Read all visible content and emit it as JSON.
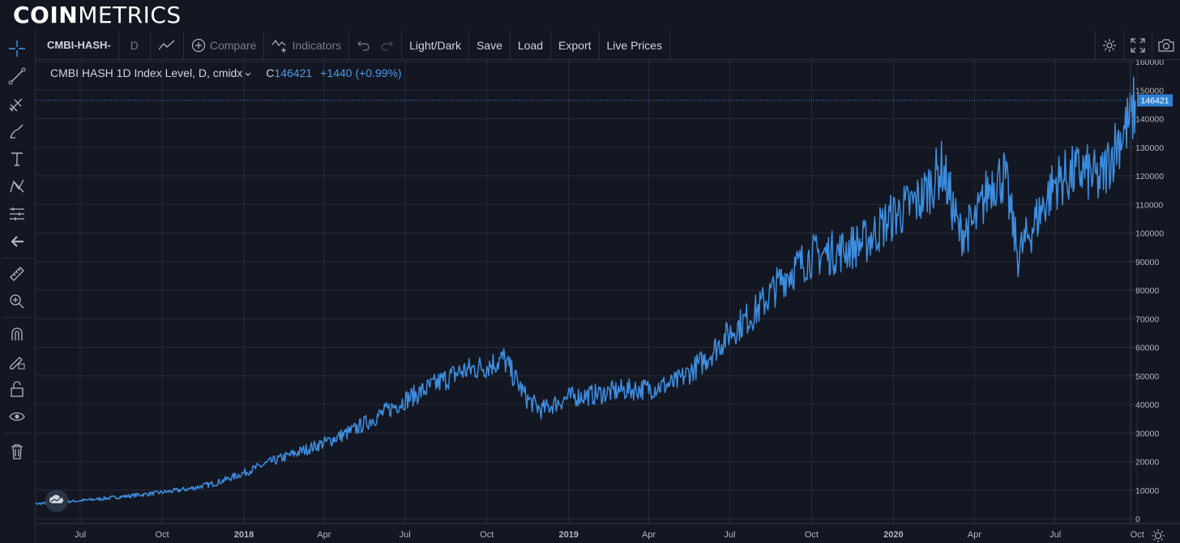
{
  "brand": {
    "bold": "COIN",
    "light": "METRICS"
  },
  "toolbar": {
    "symbol": "CMBI-HASH-",
    "interval": "D",
    "compare": "Compare",
    "indicators": "Indicators",
    "light_dark": "Light/Dark",
    "save": "Save",
    "load": "Load",
    "export": "Export",
    "live_prices": "Live Prices"
  },
  "legend": {
    "title": "CMBI HASH 1D Index Level, D, cmidx",
    "close_prefix": "C",
    "close_value": "146421",
    "change": "+1440 (+0.99%)"
  },
  "sidebar_icons": [
    "crosshair-icon",
    "trend-line-icon",
    "pitchfork-icon",
    "brush-icon",
    "text-icon",
    "pattern-icon",
    "measure-lines-icon",
    "back-arrow-icon",
    "ruler-icon",
    "zoom-in-icon",
    "magnet-icon",
    "lock-drawing-icon",
    "unlock-icon",
    "eye-icon",
    "trash-icon"
  ],
  "colors": {
    "background": "#131722",
    "line": "#3d8ee0",
    "grid": "#262b38",
    "axis_text": "#b2b5be",
    "price_label": "#2f80d3"
  },
  "chart_data": {
    "type": "line",
    "title": "CMBI HASH 1D Index Level",
    "xlabel": "",
    "ylabel": "",
    "x_ticks": [
      "Jul",
      "Oct",
      "2018",
      "Apr",
      "Jul",
      "Oct",
      "2019",
      "Apr",
      "Jul",
      "Oct",
      "2020",
      "Apr",
      "Jul",
      "Oct"
    ],
    "ylim": [
      0,
      160000
    ],
    "y_ticks": [
      0,
      10000,
      20000,
      30000,
      40000,
      50000,
      60000,
      70000,
      80000,
      90000,
      100000,
      110000,
      120000,
      130000,
      140000,
      150000,
      160000
    ],
    "last_price_label": "146421",
    "last_price_value": 146421,
    "grid": true,
    "series": [
      {
        "points": [
          [
            "2017-05-01",
            5000
          ],
          [
            "2017-06-01",
            5600
          ],
          [
            "2017-07-01",
            6300
          ],
          [
            "2017-08-01",
            7200
          ],
          [
            "2017-09-01",
            8200
          ],
          [
            "2017-10-01",
            9200
          ],
          [
            "2017-11-01",
            10500
          ],
          [
            "2017-12-01",
            12500
          ],
          [
            "2018-01-01",
            16000
          ],
          [
            "2018-02-01",
            20000
          ],
          [
            "2018-03-01",
            23000
          ],
          [
            "2018-04-01",
            26500
          ],
          [
            "2018-05-01",
            30500
          ],
          [
            "2018-06-01",
            36000
          ],
          [
            "2018-07-01",
            41500
          ],
          [
            "2018-08-01",
            46500
          ],
          [
            "2018-09-01",
            51500
          ],
          [
            "2018-10-01",
            53500
          ],
          [
            "2018-10-20",
            56000
          ],
          [
            "2018-11-15",
            42000
          ],
          [
            "2018-12-01",
            38000
          ],
          [
            "2019-01-01",
            42500
          ],
          [
            "2019-02-01",
            43500
          ],
          [
            "2019-03-01",
            45000
          ],
          [
            "2019-04-01",
            45500
          ],
          [
            "2019-05-01",
            47500
          ],
          [
            "2019-06-01",
            55000
          ],
          [
            "2019-07-01",
            65000
          ],
          [
            "2019-08-01",
            73000
          ],
          [
            "2019-09-01",
            85000
          ],
          [
            "2019-10-01",
            92000
          ],
          [
            "2019-11-01",
            93500
          ],
          [
            "2019-12-01",
            97000
          ],
          [
            "2020-01-01",
            106000
          ],
          [
            "2020-02-01",
            112000
          ],
          [
            "2020-02-25",
            123000
          ],
          [
            "2020-03-15",
            100000
          ],
          [
            "2020-04-01",
            103000
          ],
          [
            "2020-04-20",
            118000
          ],
          [
            "2020-05-05",
            120000
          ],
          [
            "2020-05-20",
            92000
          ],
          [
            "2020-06-10",
            105000
          ],
          [
            "2020-07-01",
            118000
          ],
          [
            "2020-08-01",
            122000
          ],
          [
            "2020-08-20",
            118000
          ],
          [
            "2020-09-10",
            133000
          ],
          [
            "2020-09-25",
            140000
          ],
          [
            "2020-09-29",
            146421
          ]
        ]
      }
    ]
  }
}
